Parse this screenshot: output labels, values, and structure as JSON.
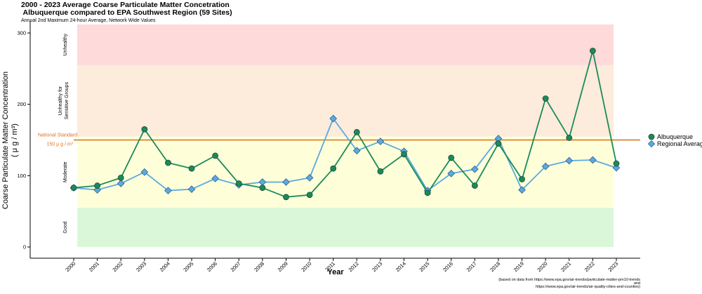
{
  "chart_data": {
    "type": "line",
    "title_lines": [
      "2000 - 2023 Average Coarse Particulate Matter Concetration",
      " Albuquerque compared to EPA Southwest Region (59 Sites)"
    ],
    "subtitle": "Annual 2nd Maximum 24-hour Average, Network Wide Values",
    "xlabel": "Year",
    "ylabel_main": "Coarse Particulate Matter Concentration",
    "ylabel_units": "( μ g / m³)",
    "ylim": [
      0,
      312
    ],
    "yticks": [
      0,
      100,
      200,
      300
    ],
    "categories": [
      "2000",
      "2001",
      "2002",
      "2003",
      "2004",
      "2005",
      "2006",
      "2007",
      "2008",
      "2009",
      "2010",
      "2011",
      "2012",
      "2013",
      "2014",
      "2015",
      "2016",
      "2017",
      "2018",
      "2019",
      "2020",
      "2021",
      "2022",
      "2023"
    ],
    "series": [
      {
        "name": "Albuquerque",
        "color": "#1b8a5a",
        "marker": "circle",
        "values": [
          83,
          86,
          97,
          165,
          118,
          110,
          128,
          89,
          83,
          70,
          73,
          110,
          161,
          106,
          130,
          76,
          125,
          86,
          145,
          95,
          208,
          153,
          275,
          117
        ]
      },
      {
        "name": "Regional Average",
        "color": "#5aaae0",
        "marker": "diamond",
        "values": [
          83,
          80,
          89,
          105,
          79,
          81,
          96,
          87,
          91,
          91,
          97,
          180,
          135,
          148,
          134,
          79,
          103,
          109,
          152,
          80,
          113,
          121,
          122,
          111
        ]
      }
    ],
    "bands": [
      {
        "label": "Good",
        "from": 0,
        "to": 55,
        "color": "#daf7da"
      },
      {
        "label": "Moderate",
        "from": 55,
        "to": 155,
        "color": "#feffd9"
      },
      {
        "label_lines": [
          "Unhealthy for",
          "Sensitive Groups"
        ],
        "from": 155,
        "to": 255,
        "color": "#fdebdb"
      },
      {
        "label": "Unhealthy",
        "from": 255,
        "to": 315,
        "color": "#ffdada"
      }
    ],
    "standard": {
      "value": 150,
      "label_line1": "National Standard",
      "label_line2": "150  μ g / m³",
      "color": "#d5711f"
    },
    "legend_placement": "right",
    "source_lines": [
      "(based on data from https://www.epa.gov/air-trends/particulate-matter-pm10-trends",
      "and",
      "https://www.epa.gov/air-trends/air-quality-cities-and-counties)"
    ]
  }
}
